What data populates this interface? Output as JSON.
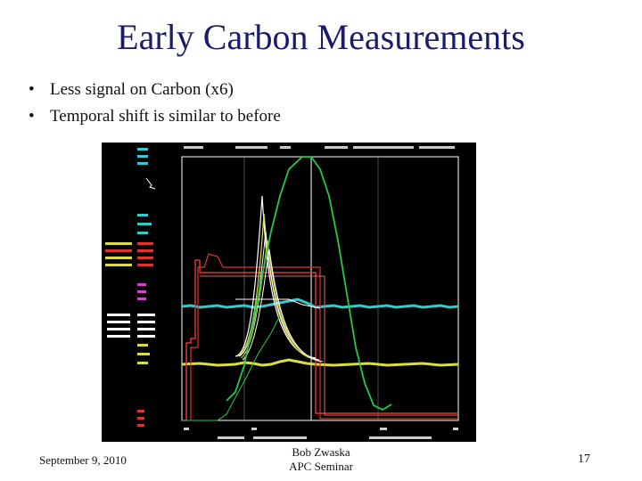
{
  "slide": {
    "title": "Early Carbon Measurements",
    "bullets": [
      "Less signal on Carbon (x6)",
      "Temporal shift is similar to before"
    ],
    "bullet_glyph": "•"
  },
  "footer": {
    "date": "September 9, 2010",
    "presenter": "Bob Zwaska",
    "event": "APC Seminar",
    "page_number": "17"
  },
  "scope_image": {
    "description_icon": "oscilloscope-screenshot-icon",
    "colors": {
      "background": "#000000",
      "grid": "#ffffff",
      "green": "#22cc44",
      "cyan": "#33cccc",
      "yellow": "#dddd44",
      "white": "#ffffff",
      "red": "#dd3333",
      "magenta": "#cc44cc",
      "label_yellow": "#dddd44",
      "label_red": "#dd3333"
    }
  }
}
